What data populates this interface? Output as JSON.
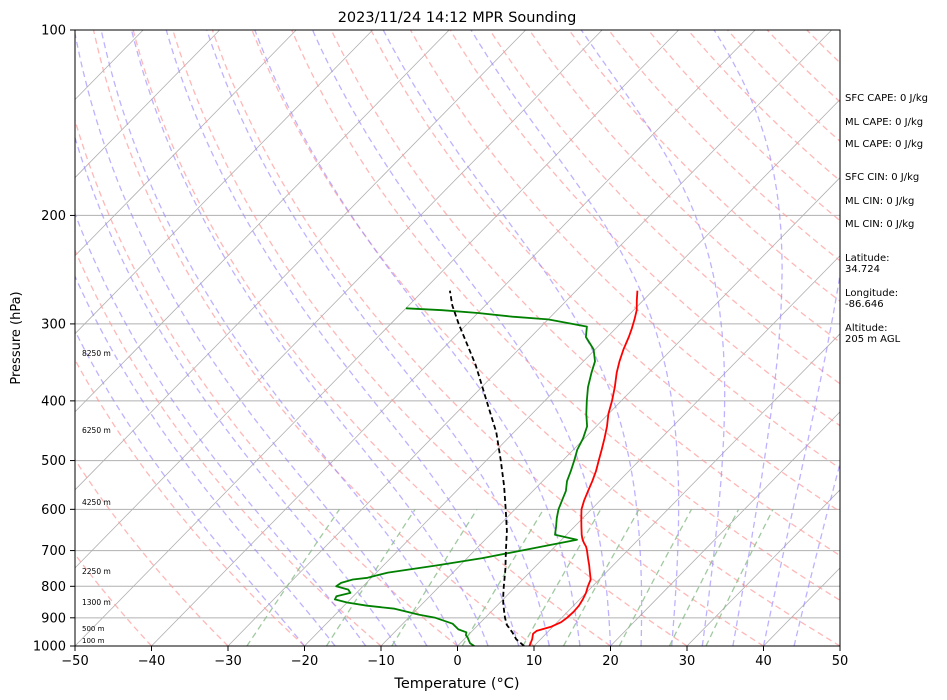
{
  "chart_data": {
    "type": "line",
    "title": "2023/11/24 14:12 MPR Sounding",
    "xlabel": "Temperature (°C)",
    "ylabel": "Pressure (hPa)",
    "xlim": [
      -50,
      50
    ],
    "ylim": [
      1000,
      100
    ],
    "y_scale": "log",
    "x_ticks": [
      "−50",
      "−40",
      "−30",
      "−20",
      "−10",
      "0",
      "10",
      "20",
      "30",
      "40",
      "50"
    ],
    "y_ticks": [
      "100",
      "200",
      "300",
      "400",
      "500",
      "600",
      "700",
      "800",
      "900",
      "1000"
    ],
    "grid": true,
    "series": [
      {
        "color": "#ff0000",
        "points": [
          [
            265,
            -22
          ],
          [
            275,
            -20.8
          ],
          [
            285,
            -19.6
          ],
          [
            295,
            -18.7
          ],
          [
            305,
            -17.9
          ],
          [
            315,
            -17.2
          ],
          [
            330,
            -16.3
          ],
          [
            345,
            -15.3
          ],
          [
            360,
            -14.2
          ],
          [
            380,
            -12.6
          ],
          [
            400,
            -11.2
          ],
          [
            420,
            -10.0
          ],
          [
            440,
            -8.6
          ],
          [
            460,
            -7.4
          ],
          [
            480,
            -6.3
          ],
          [
            500,
            -5.3
          ],
          [
            520,
            -4.3
          ],
          [
            540,
            -3.5
          ],
          [
            560,
            -2.8
          ],
          [
            580,
            -2.1
          ],
          [
            600,
            -1.3
          ],
          [
            620,
            -0.2
          ],
          [
            640,
            0.9
          ],
          [
            660,
            2.0
          ],
          [
            670,
            2.6
          ],
          [
            680,
            3.3
          ],
          [
            690,
            4.1
          ],
          [
            700,
            4.7
          ],
          [
            720,
            5.8
          ],
          [
            740,
            6.9
          ],
          [
            760,
            7.9
          ],
          [
            780,
            8.9
          ],
          [
            800,
            9.4
          ],
          [
            820,
            10.0
          ],
          [
            840,
            10.4
          ],
          [
            860,
            10.7
          ],
          [
            880,
            10.8
          ],
          [
            900,
            10.7
          ],
          [
            915,
            10.5
          ],
          [
            930,
            9.8
          ],
          [
            945,
            8.4
          ],
          [
            955,
            8.3
          ],
          [
            965,
            8.6
          ],
          [
            975,
            8.9
          ],
          [
            990,
            9.2
          ],
          [
            1000,
            9.4
          ]
        ]
      },
      {
        "color": "#008000",
        "points": [
          [
            283,
            -50
          ],
          [
            285,
            -45
          ],
          [
            288,
            -40
          ],
          [
            292,
            -35
          ],
          [
            295,
            -30
          ],
          [
            303,
            -24
          ],
          [
            310,
            -23.3
          ],
          [
            315,
            -22.8
          ],
          [
            330,
            -20.2
          ],
          [
            345,
            -18.5
          ],
          [
            360,
            -17.5
          ],
          [
            380,
            -16.1
          ],
          [
            400,
            -14.5
          ],
          [
            420,
            -12.9
          ],
          [
            440,
            -11.2
          ],
          [
            460,
            -10.2
          ],
          [
            480,
            -9.5
          ],
          [
            500,
            -8.5
          ],
          [
            520,
            -7.6
          ],
          [
            540,
            -6.8
          ],
          [
            560,
            -5.7
          ],
          [
            580,
            -5.0
          ],
          [
            600,
            -4.3
          ],
          [
            620,
            -3.4
          ],
          [
            640,
            -2.4
          ],
          [
            660,
            -1.5
          ],
          [
            672,
            2.0
          ],
          [
            690,
            -1.8
          ],
          [
            700,
            -3.9
          ],
          [
            720,
            -8.0
          ],
          [
            740,
            -13.0
          ],
          [
            760,
            -18.5
          ],
          [
            775,
            -20.5
          ],
          [
            780,
            -22.2
          ],
          [
            790,
            -23.3
          ],
          [
            800,
            -23.5
          ],
          [
            810,
            -21.5
          ],
          [
            820,
            -20.8
          ],
          [
            830,
            -22.2
          ],
          [
            840,
            -22.0
          ],
          [
            850,
            -20.0
          ],
          [
            860,
            -17.0
          ],
          [
            870,
            -13.0
          ],
          [
            880,
            -11.0
          ],
          [
            890,
            -9.0
          ],
          [
            900,
            -6.5
          ],
          [
            920,
            -3.5
          ],
          [
            940,
            -2.0
          ],
          [
            950,
            -0.6
          ],
          [
            960,
            -0.3
          ],
          [
            970,
            0.3
          ],
          [
            980,
            0.8
          ],
          [
            990,
            1.3
          ],
          [
            1000,
            2.2
          ]
        ]
      },
      {
        "color": "#000000",
        "dashed": true,
        "points": [
          [
            1000,
            8.7
          ],
          [
            975,
            6.8
          ],
          [
            950,
            5.4
          ],
          [
            925,
            3.8
          ],
          [
            900,
            2.6
          ],
          [
            875,
            1.5
          ],
          [
            850,
            0.4
          ],
          [
            825,
            -0.6
          ],
          [
            800,
            -1.6
          ],
          [
            750,
            -3.6
          ],
          [
            700,
            -5.9
          ],
          [
            650,
            -8.3
          ],
          [
            600,
            -11.2
          ],
          [
            550,
            -14.4
          ],
          [
            500,
            -18.1
          ],
          [
            450,
            -22.3
          ],
          [
            400,
            -27.6
          ],
          [
            350,
            -33.6
          ],
          [
            300,
            -41.1
          ],
          [
            280,
            -44.3
          ],
          [
            265,
            -46.5
          ]
        ]
      }
    ],
    "height_labels": [
      "8250 m",
      "6250 m",
      "4250 m",
      "2250 m",
      "1300 m",
      "500 m",
      "100 m"
    ],
    "info_lines": [
      "SFC CAPE: 0 J/kg",
      "ML CAPE: 0 J/kg",
      "ML CAPE: 0 J/kg",
      "SFC CIN: 0 J/kg",
      "ML CIN: 0 J/kg",
      "ML CIN: 0 J/kg",
      "Latitude:\n34.724",
      "Longitude:\n-86.646",
      "Altitude:\n205 m AGL"
    ],
    "colors": {
      "isotherm": "#b0b0b0",
      "dry_adiabat": "#ff9999",
      "moist_adiabat": "#9988ff",
      "mixing_ratio": "#88bb88"
    }
  }
}
